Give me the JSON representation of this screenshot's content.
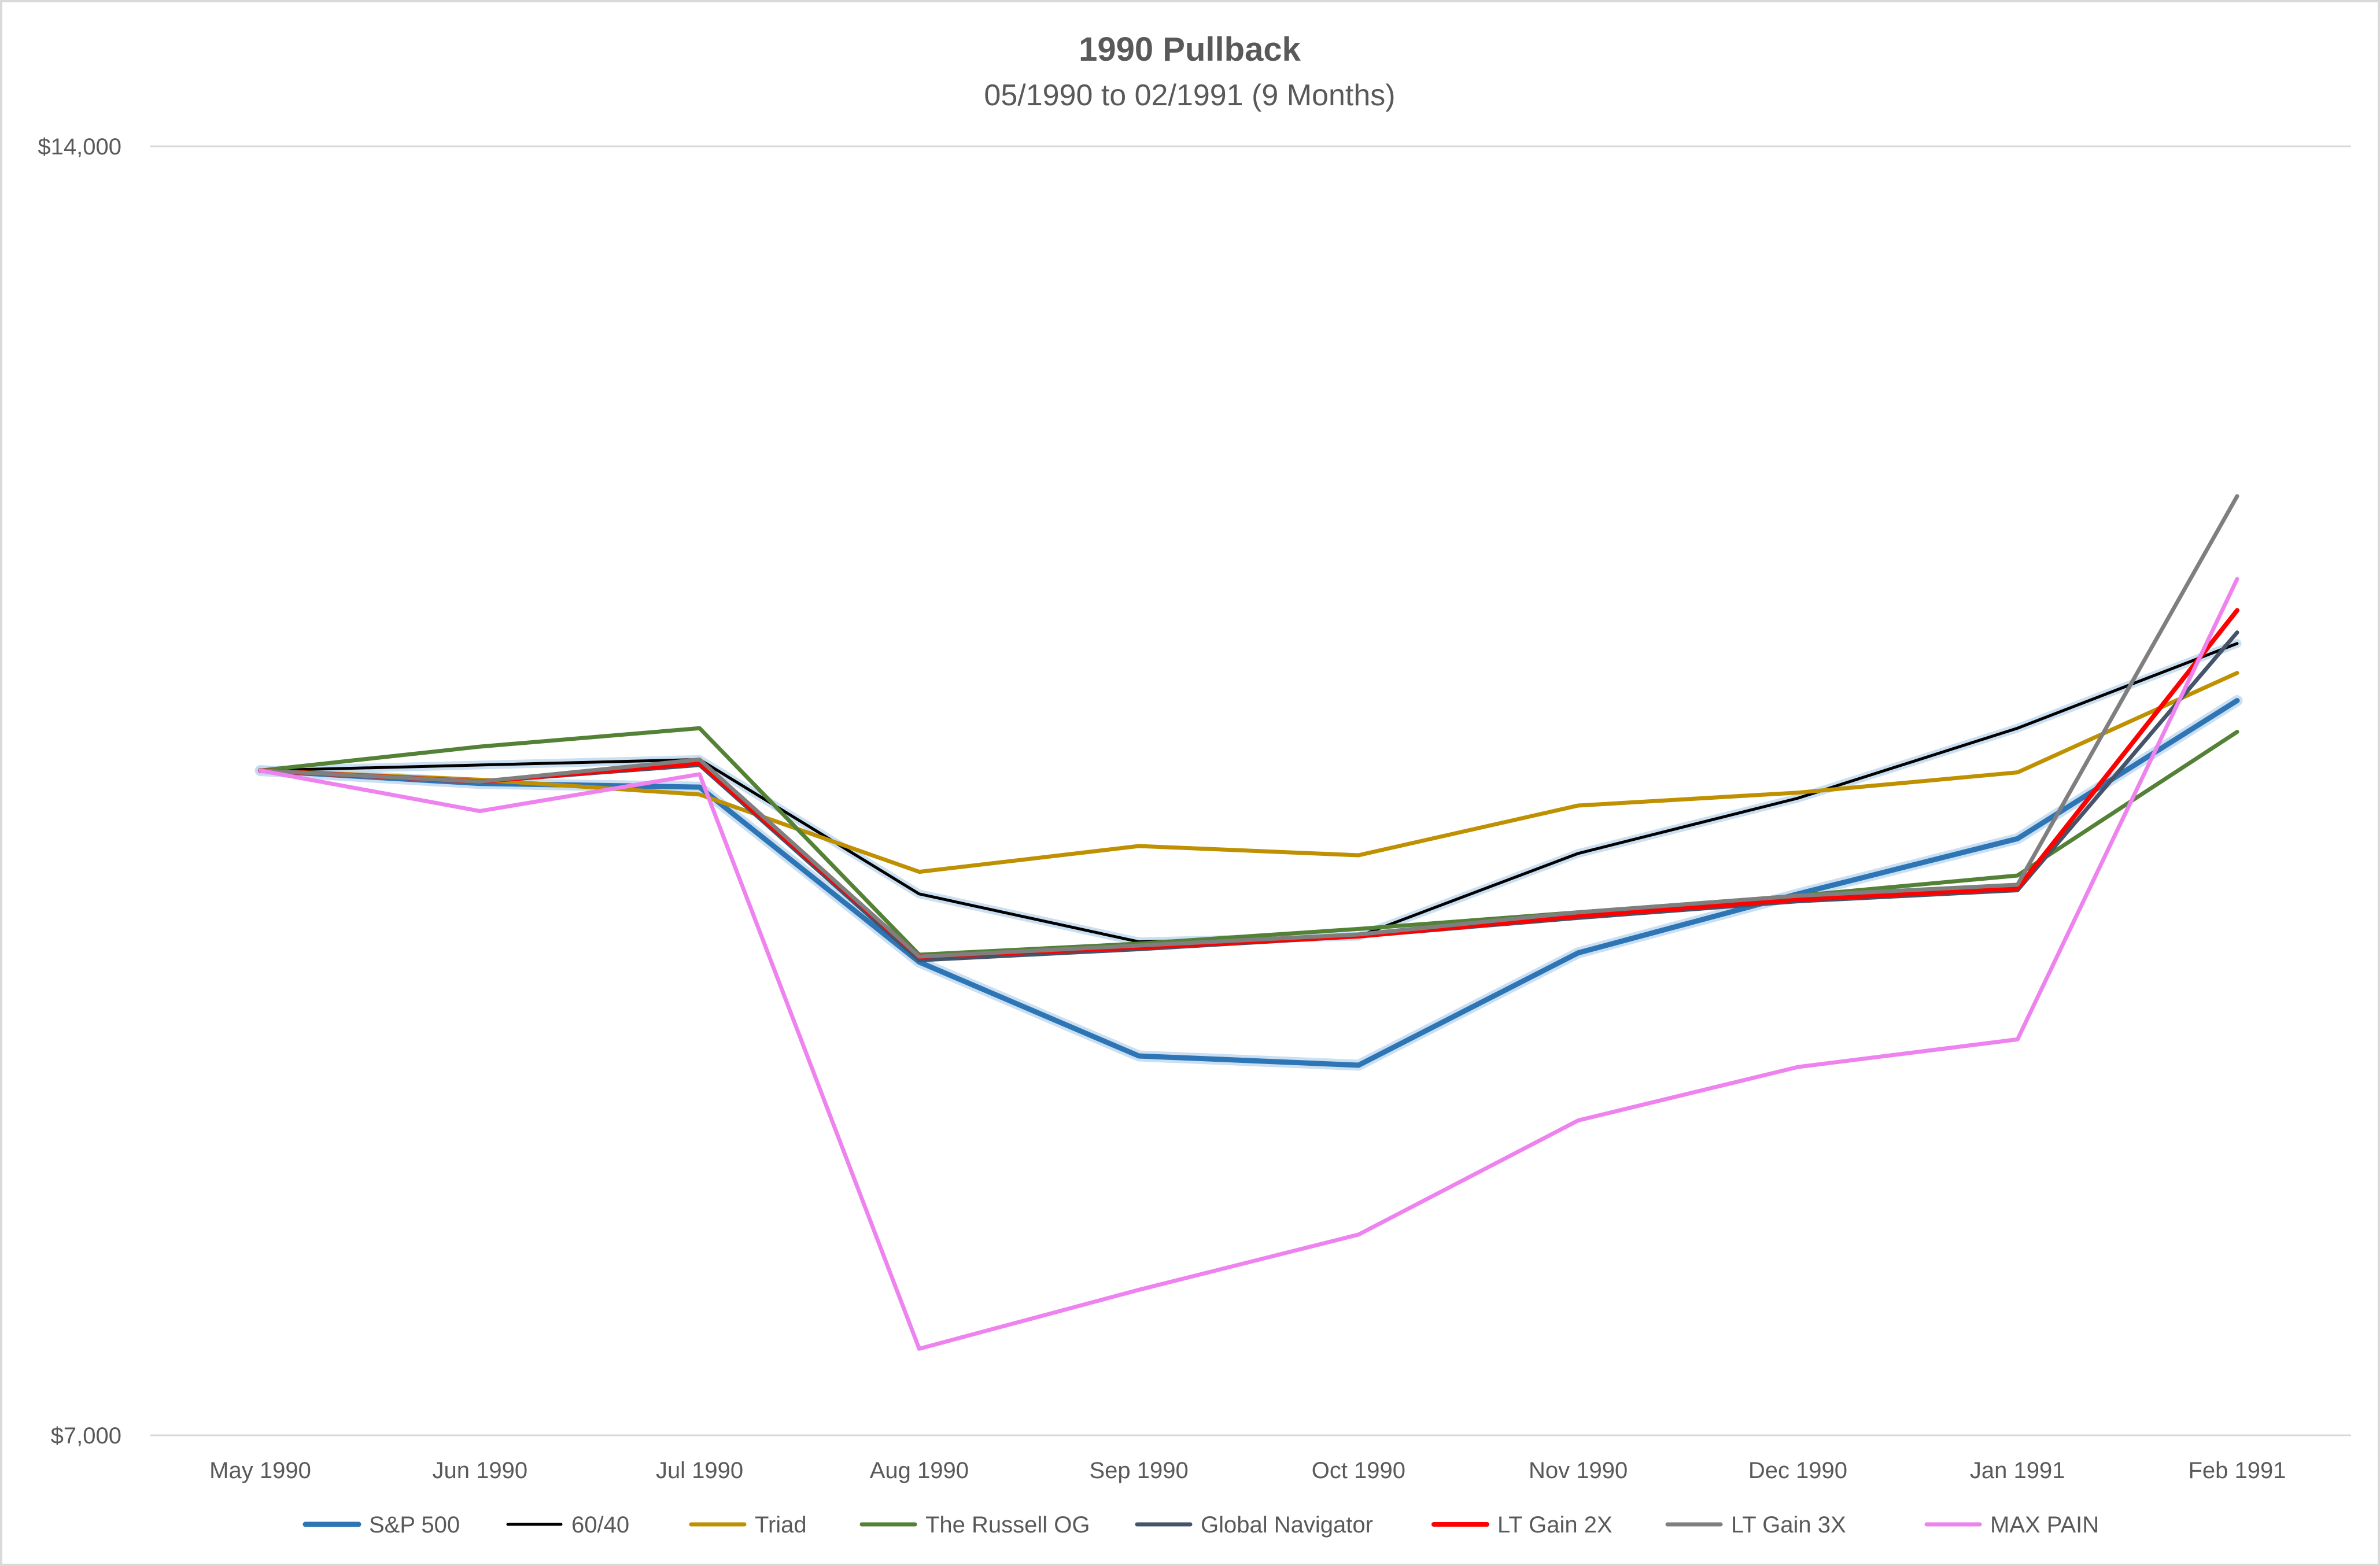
{
  "chart_data": {
    "type": "line",
    "title": "1990 Pullback",
    "subtitle": "05/1990 to 02/1991 (9 Months)",
    "xlabel": "",
    "ylabel": "",
    "ylim": [
      7000,
      14000
    ],
    "y_ticks": [
      7000,
      14000
    ],
    "y_tick_labels": [
      "$7,000",
      "$14,000"
    ],
    "grid": true,
    "legend_position": "bottom",
    "categories": [
      "May 1990",
      "Jun 1990",
      "Jul 1990",
      "Aug 1990",
      "Sep 1990",
      "Oct 1990",
      "Nov 1990",
      "Dec 1990",
      "Jan 1991",
      "Feb 1991"
    ],
    "series": [
      {
        "name": "S&P 500",
        "color": "#2e75b6",
        "width": 9,
        "values": [
          10610,
          10540,
          10520,
          9570,
          9060,
          9010,
          9620,
          9940,
          10240,
          10990
        ]
      },
      {
        "name": "60/40",
        "color": "#000000",
        "width": 5,
        "values": [
          10610,
          10640,
          10670,
          9940,
          9680,
          9710,
          10160,
          10460,
          10840,
          11300
        ]
      },
      {
        "name": "Triad",
        "color": "#bf9000",
        "width": 7,
        "values": [
          10610,
          10560,
          10480,
          10060,
          10200,
          10150,
          10420,
          10490,
          10600,
          11140
        ]
      },
      {
        "name": "The Russell OG",
        "color": "#538135",
        "width": 7,
        "values": [
          10610,
          10740,
          10840,
          9610,
          9670,
          9750,
          9840,
          9930,
          10040,
          10820
        ]
      },
      {
        "name": "Global Navigator",
        "color": "#44546a",
        "width": 7,
        "values": [
          10610,
          10550,
          10640,
          9580,
          9640,
          9710,
          9810,
          9900,
          9960,
          11360
        ]
      },
      {
        "name": "LT Gain 2X",
        "color": "#ff0000",
        "width": 8,
        "values": [
          10610,
          10550,
          10650,
          9600,
          9650,
          9710,
          9820,
          9910,
          9970,
          11480
        ]
      },
      {
        "name": "LT Gain 3X",
        "color": "#7f7f7f",
        "width": 7,
        "values": [
          10610,
          10550,
          10670,
          9600,
          9660,
          9720,
          9840,
          9930,
          9990,
          12100
        ]
      },
      {
        "name": "MAX PAIN",
        "color": "#ee82ee",
        "width": 7,
        "values": [
          10610,
          10390,
          10590,
          7470,
          7790,
          8090,
          8710,
          9000,
          9150,
          11650
        ]
      }
    ]
  }
}
